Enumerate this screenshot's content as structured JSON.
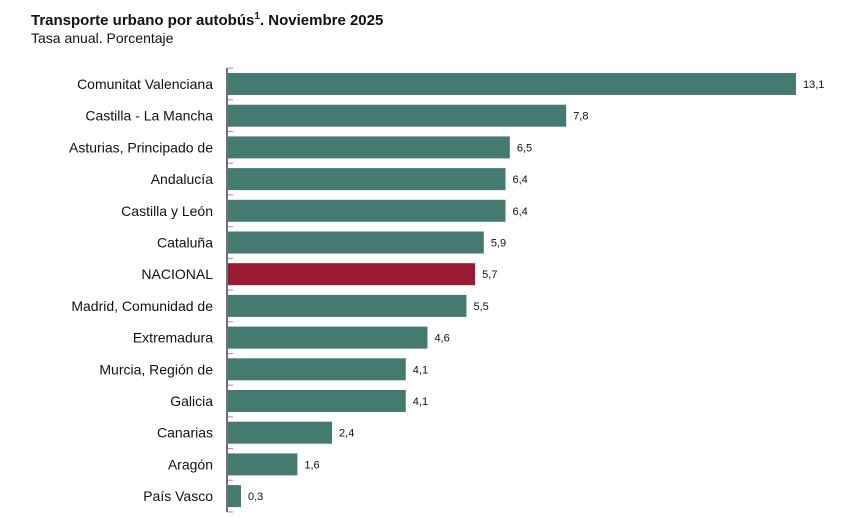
{
  "chart_data": {
    "type": "bar",
    "orientation": "horizontal",
    "title": "Transporte urbano por autobús",
    "title_superscript": "1",
    "title_suffix": ". Noviembre 2025",
    "subtitle": "Tasa anual. Porcentaje",
    "categories": [
      "Comunitat Valenciana",
      "Castilla - La Mancha",
      "Asturias, Principado de",
      "Andalucía",
      "Castilla y León",
      "Cataluña",
      "NACIONAL",
      "Madrid, Comunidad de",
      "Extremadura",
      "Murcia, Región de",
      "Galicia",
      "Canarias",
      "Aragón",
      "País Vasco"
    ],
    "values": [
      13.1,
      7.8,
      6.5,
      6.4,
      6.4,
      5.9,
      5.7,
      5.5,
      4.6,
      4.1,
      4.1,
      2.4,
      1.6,
      0.3
    ],
    "value_labels": [
      "13,1",
      "7,8",
      "6,5",
      "6,4",
      "6,4",
      "5,9",
      "5,7",
      "5,5",
      "4,6",
      "4,1",
      "4,1",
      "2,4",
      "1,6",
      "0,3"
    ],
    "highlight": "NACIONAL",
    "colors": {
      "bar": "#457a70",
      "highlight": "#9b1a33"
    },
    "grid": false,
    "legend": "none"
  }
}
